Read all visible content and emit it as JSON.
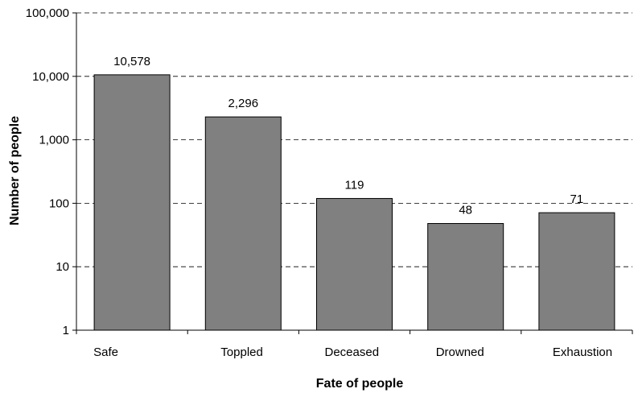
{
  "chart_data": {
    "type": "bar",
    "title": "",
    "xlabel": "Fate of people",
    "ylabel": "Number of people",
    "yscale": "log",
    "ylim": [
      1,
      100000
    ],
    "yticks": [
      1,
      10,
      100,
      1000,
      10000,
      100000
    ],
    "ytick_labels": [
      "1",
      "10",
      "100",
      "1,000",
      "10,000",
      "100,000"
    ],
    "categories": [
      "Safe",
      "Toppled",
      "Deceased",
      "Drowned",
      "Exhaustion"
    ],
    "values": [
      10578,
      2296,
      119,
      48,
      71
    ],
    "data_labels": [
      "10,578",
      "2,296",
      "119",
      "48",
      "71"
    ],
    "grid": true,
    "legend": "none",
    "colors": {
      "bar_fill": "#808080",
      "bar_stroke": "#000000",
      "grid": "#000000"
    }
  }
}
